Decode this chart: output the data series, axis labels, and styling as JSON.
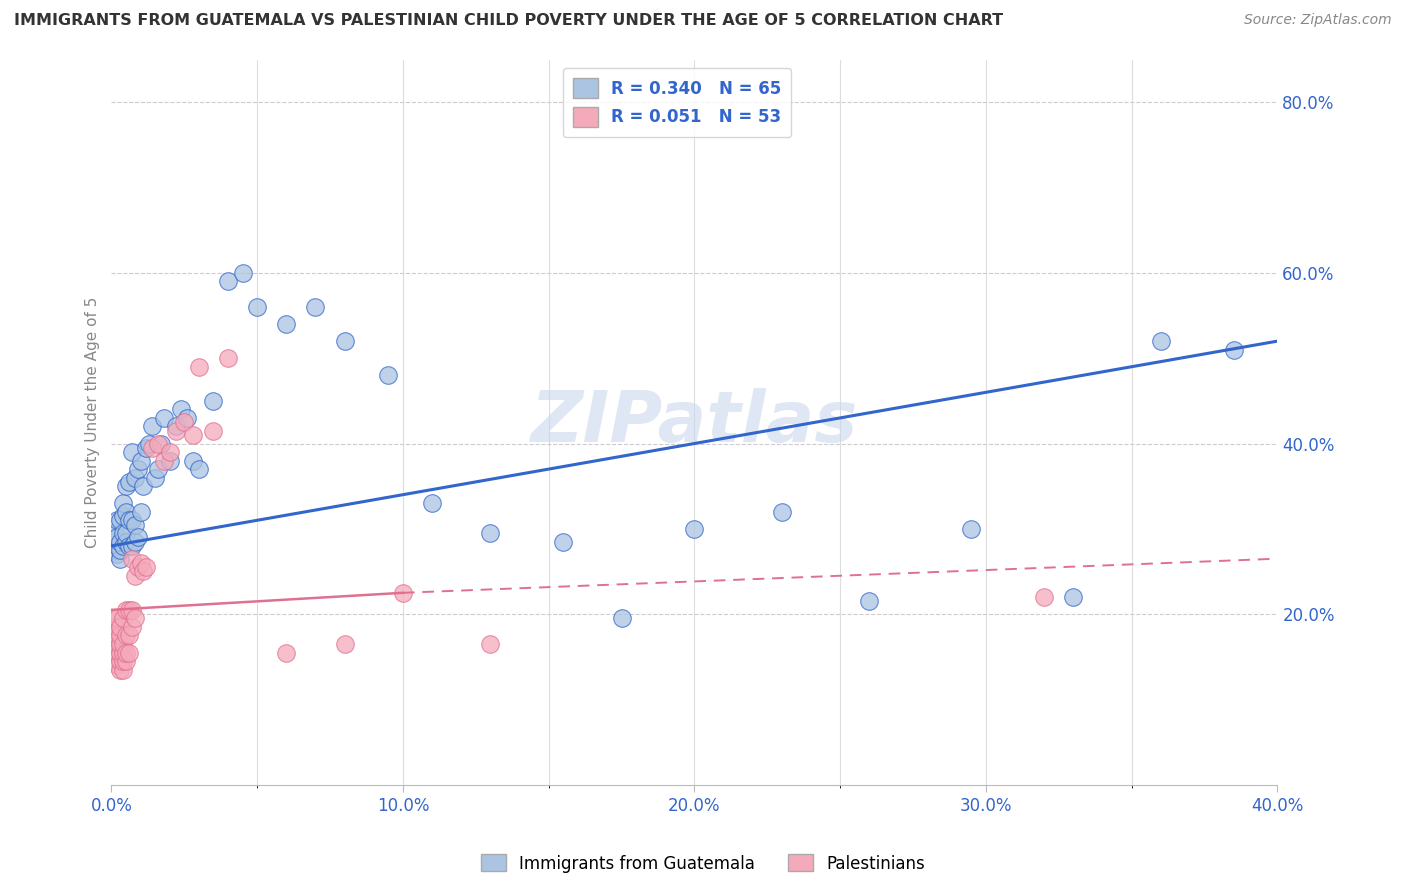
{
  "title": "IMMIGRANTS FROM GUATEMALA VS PALESTINIAN CHILD POVERTY UNDER THE AGE OF 5 CORRELATION CHART",
  "source": "Source: ZipAtlas.com",
  "ylabel": "Child Poverty Under the Age of 5",
  "xlim": [
    0.0,
    0.4
  ],
  "ylim": [
    0.0,
    0.85
  ],
  "legend_r1": "R = 0.340",
  "legend_n1": "N = 65",
  "legend_r2": "R = 0.051",
  "legend_n2": "N = 53",
  "color_blue": "#aac4e2",
  "color_pink": "#f5aabb",
  "line_blue": "#3366cc",
  "line_pink": "#e07090",
  "title_color": "#333333",
  "axis_label_color": "#3366cc",
  "background": "#ffffff",
  "watermark": "ZIPatlas",
  "blue_line_x0": 0.0,
  "blue_line_y0": 0.28,
  "blue_line_x1": 0.4,
  "blue_line_y1": 0.52,
  "pink_line_solid_x0": 0.0,
  "pink_line_solid_y0": 0.205,
  "pink_line_solid_x1": 0.1,
  "pink_line_solid_y1": 0.225,
  "pink_line_dash_x0": 0.1,
  "pink_line_dash_y0": 0.225,
  "pink_line_dash_x1": 0.4,
  "pink_line_dash_y1": 0.265,
  "blue_dots_x": [
    0.001,
    0.001,
    0.001,
    0.002,
    0.002,
    0.002,
    0.002,
    0.003,
    0.003,
    0.003,
    0.003,
    0.004,
    0.004,
    0.004,
    0.004,
    0.005,
    0.005,
    0.005,
    0.005,
    0.006,
    0.006,
    0.006,
    0.007,
    0.007,
    0.007,
    0.008,
    0.008,
    0.008,
    0.009,
    0.009,
    0.01,
    0.01,
    0.011,
    0.012,
    0.013,
    0.014,
    0.015,
    0.016,
    0.017,
    0.018,
    0.02,
    0.022,
    0.024,
    0.026,
    0.028,
    0.03,
    0.035,
    0.04,
    0.045,
    0.05,
    0.06,
    0.07,
    0.08,
    0.095,
    0.11,
    0.13,
    0.155,
    0.175,
    0.2,
    0.23,
    0.26,
    0.295,
    0.33,
    0.36,
    0.385
  ],
  "blue_dots_y": [
    0.275,
    0.285,
    0.295,
    0.27,
    0.28,
    0.29,
    0.31,
    0.265,
    0.275,
    0.285,
    0.31,
    0.28,
    0.295,
    0.315,
    0.33,
    0.285,
    0.295,
    0.32,
    0.35,
    0.28,
    0.31,
    0.355,
    0.28,
    0.31,
    0.39,
    0.285,
    0.305,
    0.36,
    0.29,
    0.37,
    0.32,
    0.38,
    0.35,
    0.395,
    0.4,
    0.42,
    0.36,
    0.37,
    0.4,
    0.43,
    0.38,
    0.42,
    0.44,
    0.43,
    0.38,
    0.37,
    0.45,
    0.59,
    0.6,
    0.56,
    0.54,
    0.56,
    0.52,
    0.48,
    0.33,
    0.295,
    0.285,
    0.195,
    0.3,
    0.32,
    0.215,
    0.3,
    0.22,
    0.52,
    0.51
  ],
  "pink_dots_x": [
    0.001,
    0.001,
    0.001,
    0.001,
    0.001,
    0.002,
    0.002,
    0.002,
    0.002,
    0.002,
    0.002,
    0.003,
    0.003,
    0.003,
    0.003,
    0.003,
    0.003,
    0.004,
    0.004,
    0.004,
    0.004,
    0.004,
    0.005,
    0.005,
    0.005,
    0.005,
    0.006,
    0.006,
    0.006,
    0.007,
    0.007,
    0.007,
    0.008,
    0.008,
    0.009,
    0.01,
    0.011,
    0.012,
    0.014,
    0.016,
    0.018,
    0.02,
    0.022,
    0.025,
    0.028,
    0.03,
    0.035,
    0.04,
    0.06,
    0.08,
    0.1,
    0.13,
    0.32
  ],
  "pink_dots_y": [
    0.155,
    0.165,
    0.175,
    0.185,
    0.195,
    0.14,
    0.155,
    0.165,
    0.175,
    0.185,
    0.195,
    0.135,
    0.145,
    0.155,
    0.165,
    0.175,
    0.185,
    0.135,
    0.145,
    0.155,
    0.165,
    0.195,
    0.145,
    0.155,
    0.175,
    0.205,
    0.155,
    0.175,
    0.205,
    0.185,
    0.205,
    0.265,
    0.195,
    0.245,
    0.255,
    0.26,
    0.25,
    0.255,
    0.395,
    0.4,
    0.38,
    0.39,
    0.415,
    0.425,
    0.41,
    0.49,
    0.415,
    0.5,
    0.155,
    0.165,
    0.225,
    0.165,
    0.22
  ]
}
